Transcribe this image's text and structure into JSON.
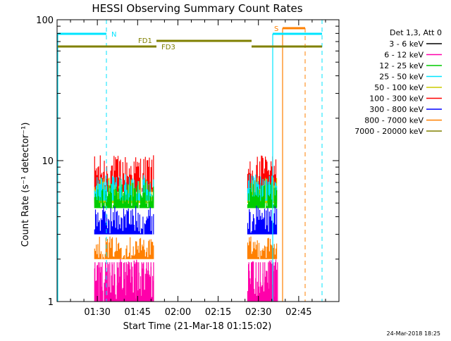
{
  "chart_data": {
    "type": "line",
    "title": "HESSI Observing Summary Count Rates",
    "xlabel": "Start Time (21-Mar-18 01:15:02)",
    "ylabel": "Count Rate (s⁻¹ detector⁻¹)",
    "y_scale": "log",
    "ylim": [
      1,
      100
    ],
    "xlim_minutes_after_start": [
      0,
      105
    ],
    "x_tick_labels": [
      "01:30",
      "01:45",
      "02:00",
      "02:15",
      "02:30",
      "02:45"
    ],
    "x_tick_minutes": [
      15,
      30,
      45,
      60,
      75,
      90
    ],
    "y_tick_labels": [
      "1",
      "10",
      "100"
    ],
    "y_tick_values": [
      1,
      10,
      100
    ],
    "timestamp": "24-Mar-2018 18:25",
    "legend_title": "Det 1,3, Att 0",
    "legend_position": "right",
    "series": [
      {
        "name": "3 - 6 keV",
        "color": "#000000"
      },
      {
        "name": "6 - 12 keV",
        "color": "#ff00aa"
      },
      {
        "name": "12 - 25 keV",
        "color": "#00cc00"
      },
      {
        "name": "25 - 50 keV",
        "color": "#00e5ff"
      },
      {
        "name": "50 - 100 keV",
        "color": "#cccc00"
      },
      {
        "name": "100 - 300 keV",
        "color": "#ff0000"
      },
      {
        "name": "300 - 800 keV",
        "color": "#0000ff"
      },
      {
        "name": "800 - 7000 keV",
        "color": "#ff8000"
      },
      {
        "name": "7000 - 20000 keV",
        "color": "#808000"
      }
    ],
    "data_intervals_minutes": [
      [
        14,
        36
      ],
      [
        71,
        82
      ]
    ],
    "band_levels": [
      {
        "series": "100 - 300 keV",
        "min": 6.0,
        "max": 11.0
      },
      {
        "series": "50 - 100 keV",
        "min": 5.0,
        "max": 7.6
      },
      {
        "series": "25 - 50 keV",
        "min": 5.2,
        "max": 8.0
      },
      {
        "series": "12 - 25 keV",
        "min": 4.6,
        "max": 7.0
      },
      {
        "series": "300 - 800 keV",
        "min": 3.0,
        "max": 4.8
      },
      {
        "series": "800 - 7000 keV",
        "min": 2.0,
        "max": 2.9
      },
      {
        "series": "6 - 12 keV",
        "min": 1.0,
        "max": 2.0
      }
    ],
    "annotations": {
      "N": {
        "label": "N",
        "color": "#00e5ff"
      },
      "S": {
        "label": "S",
        "color": "#ff8000"
      },
      "FD1": {
        "label": "FD1",
        "color": "#808000"
      },
      "FD3": {
        "label": "FD3",
        "color": "#808000"
      }
    }
  }
}
